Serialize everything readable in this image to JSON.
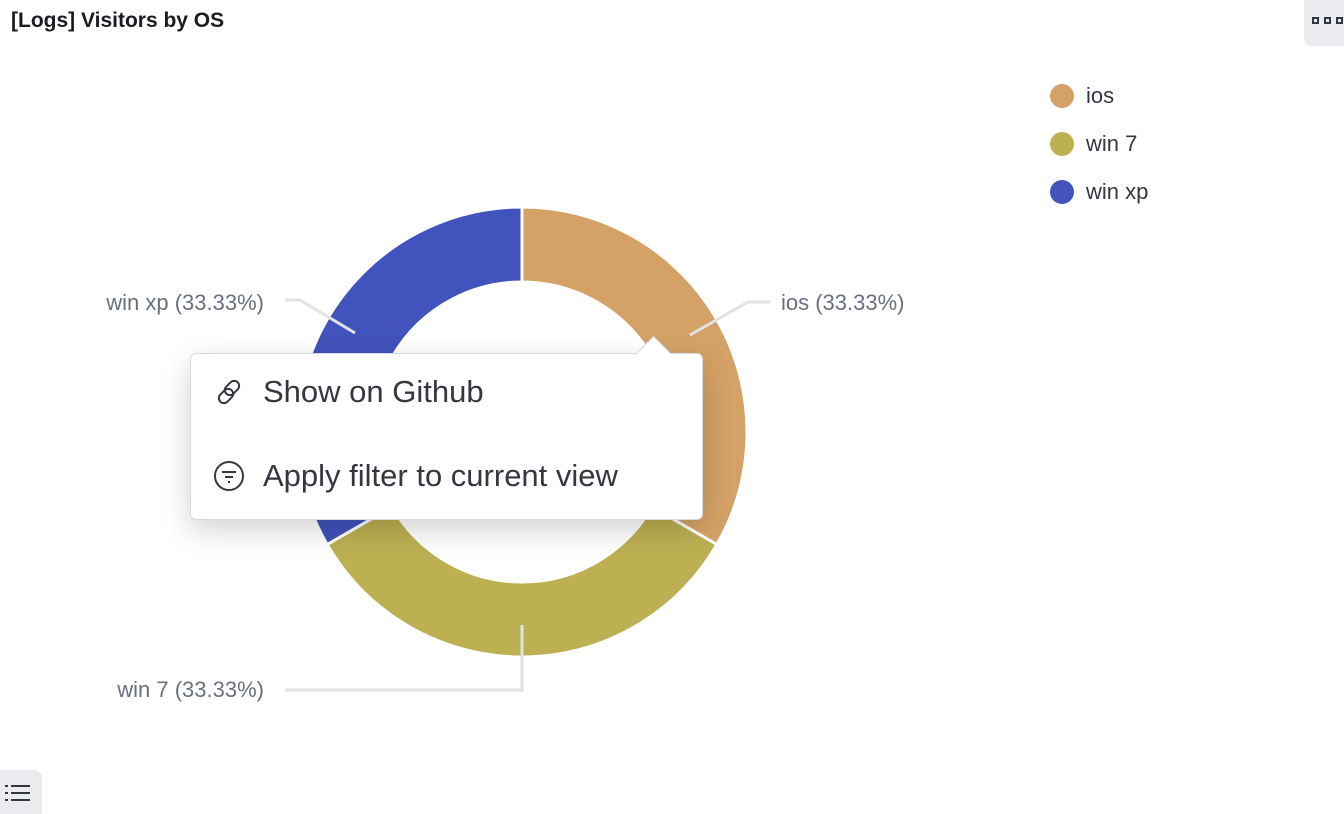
{
  "panel": {
    "title": "[Logs] Visitors by OS",
    "menu_icon": "boxes-horizontal-icon",
    "legend_toggle_icon": "list-icon"
  },
  "chart_data": {
    "type": "pie",
    "donut": true,
    "categories": [
      "ios",
      "win 7",
      "win xp"
    ],
    "values": [
      33.33,
      33.33,
      33.33
    ],
    "slice_labels": [
      "ios (33.33%)",
      "win 7 (33.33%)",
      "win xp (33.33%)"
    ],
    "colors": [
      "#d4a267",
      "#bdb052",
      "#4153bc"
    ],
    "legend": "top-right"
  },
  "popover": {
    "items": [
      {
        "label": "Show on Github",
        "icon": "link-icon"
      },
      {
        "label": "Apply filter to current view",
        "icon": "filter-icon"
      }
    ]
  }
}
